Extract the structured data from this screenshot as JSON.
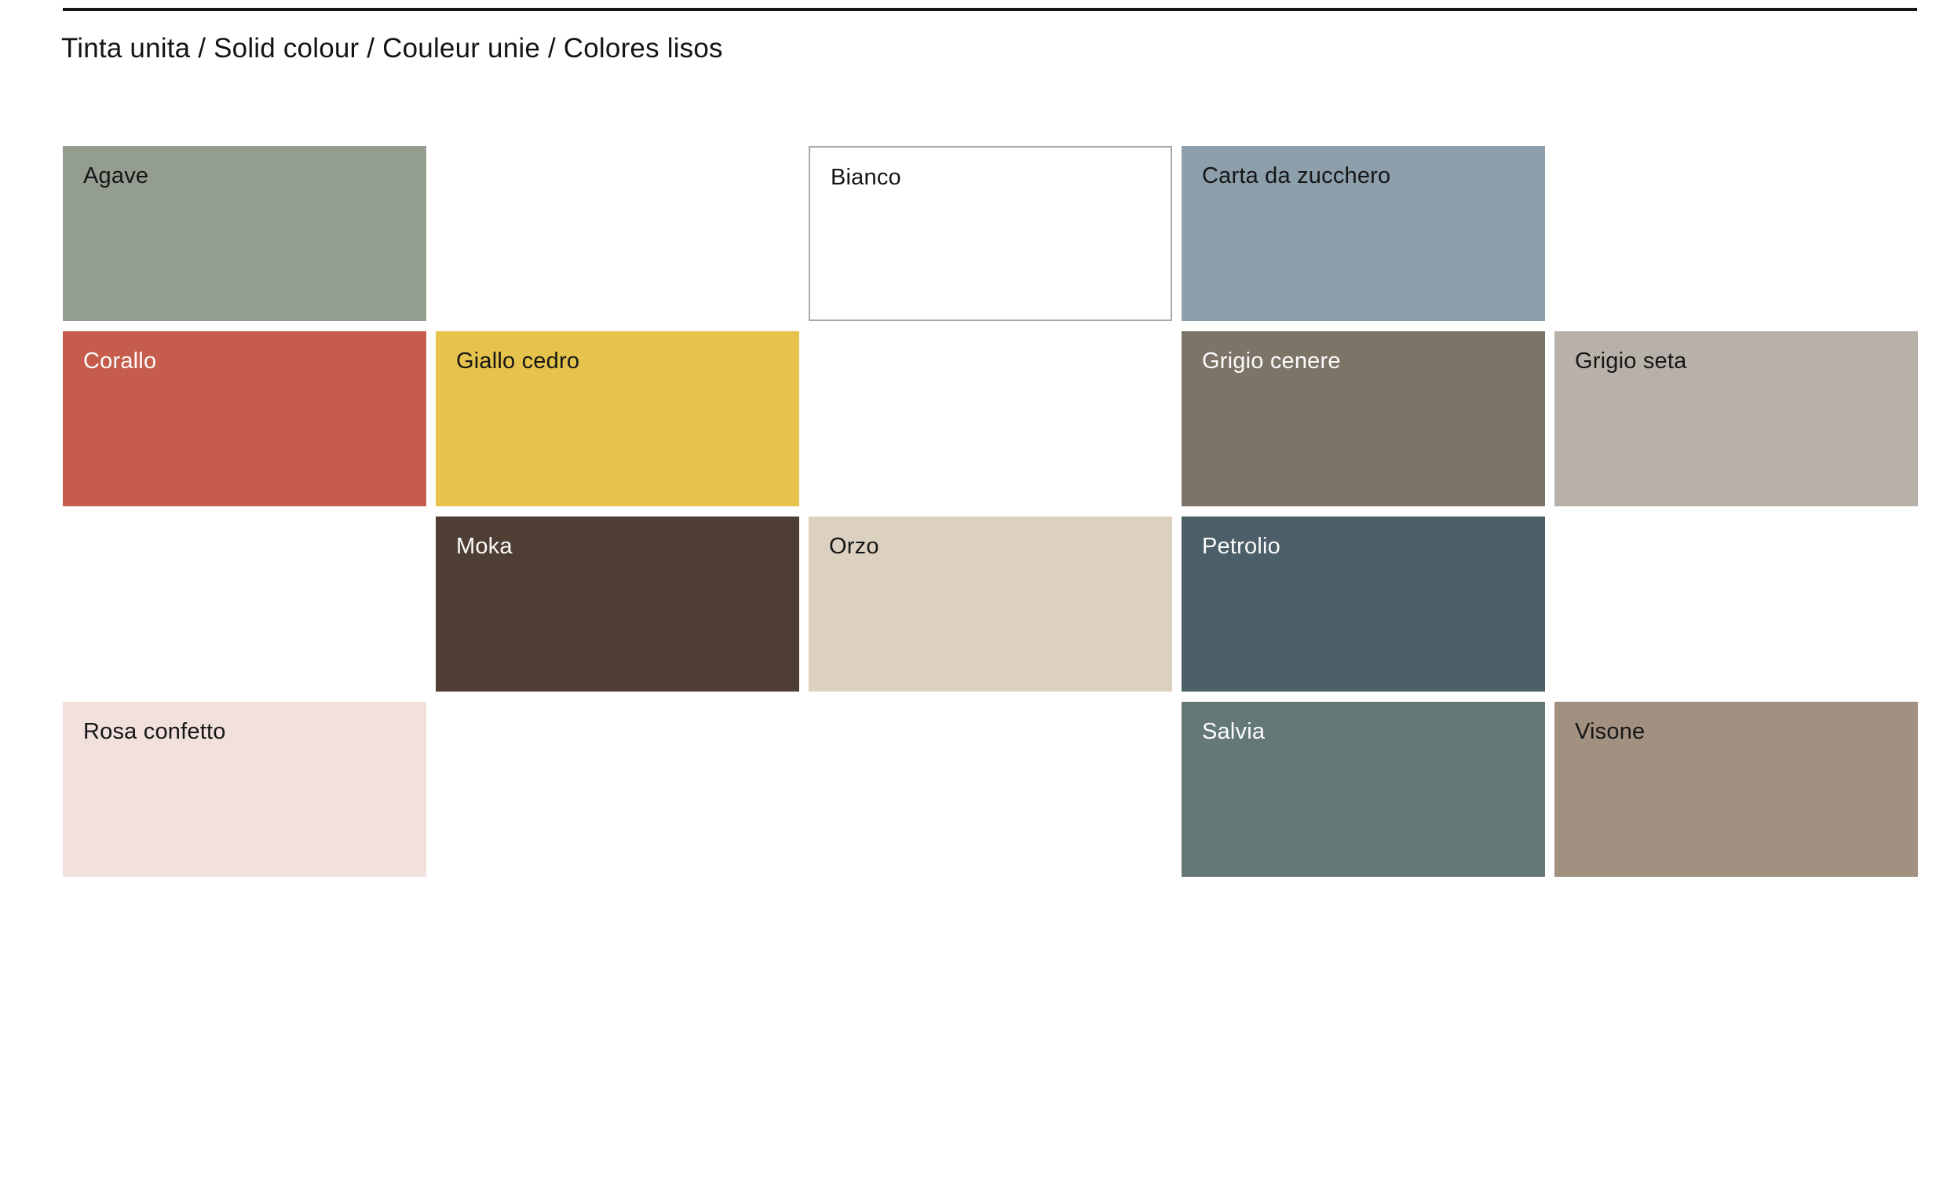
{
  "page": {
    "title": "Tinta unita / Solid colour / Couleur unie / Colores lisos",
    "background_color": "#FFFFFF",
    "rule_color": "#161616"
  },
  "palette": {
    "swatches": [
      {
        "label": "Agave",
        "color": "#949E90",
        "text_color": "#161616",
        "row": 1,
        "col": 1
      },
      {
        "label": "Bianco",
        "color": "#FFFFFF",
        "text_color": "#161616",
        "row": 1,
        "col": 3,
        "border_color": "#A9A9A9"
      },
      {
        "label": "Carta da zucchero",
        "color": "#8C9FAB",
        "text_color": "#161616",
        "row": 1,
        "col": 4
      },
      {
        "label": "Corallo",
        "color": "#C65C4B",
        "text_color": "#FCFCFC",
        "row": 2,
        "col": 1
      },
      {
        "label": "Giallo cedro",
        "color": "#E6C34C",
        "text_color": "#161616",
        "row": 2,
        "col": 2
      },
      {
        "label": "Grigio cenere",
        "color": "#7D7468",
        "text_color": "#FCFCFC",
        "row": 2,
        "col": 4
      },
      {
        "label": "Grigio seta",
        "color": "#B8B1AA",
        "text_color": "#161616",
        "row": 2,
        "col": 5
      },
      {
        "label": "Moka",
        "color": "#4F3E34",
        "text_color": "#FCFCFC",
        "row": 3,
        "col": 2
      },
      {
        "label": "Orzo",
        "color": "#DCD1C0",
        "text_color": "#161616",
        "row": 3,
        "col": 3
      },
      {
        "label": "Petrolio",
        "color": "#4C5F68",
        "text_color": "#FCFCFC",
        "row": 3,
        "col": 4
      },
      {
        "label": "Rosa confetto",
        "color": "#F1E0DC",
        "text_color": "#161616",
        "row": 4,
        "col": 1
      },
      {
        "label": "Salvia",
        "color": "#647977",
        "text_color": "#FCFCFC",
        "row": 4,
        "col": 4
      },
      {
        "label": "Visone",
        "color": "#A29181",
        "text_color": "#161616",
        "row": 4,
        "col": 5
      }
    ]
  }
}
